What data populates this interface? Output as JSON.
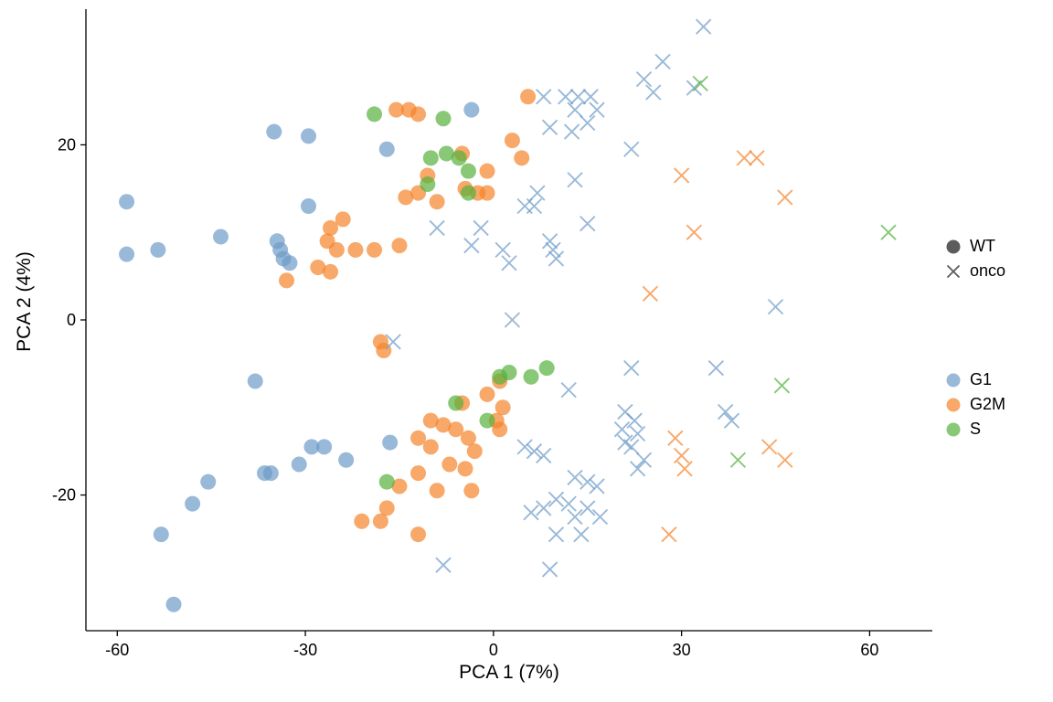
{
  "figure": {
    "background": "#ffffff"
  },
  "axes": {
    "x": {
      "label": "PCA 1 (7%)",
      "ticks": [
        -60,
        -30,
        0,
        30,
        60
      ],
      "range": [
        -65,
        70
      ]
    },
    "y": {
      "label": "PCA 2 (4%)",
      "ticks": [
        -20,
        0,
        20
      ],
      "range": [
        -35.5,
        35.5
      ]
    }
  },
  "legend": {
    "shape": {
      "color": "#404040",
      "items": [
        {
          "label": "WT",
          "marker": "circle"
        },
        {
          "label": "onco",
          "marker": "x"
        }
      ]
    },
    "color": {
      "items": [
        {
          "label": "G1",
          "color": "#6e9bc8"
        },
        {
          "label": "G2M",
          "color": "#f58329"
        },
        {
          "label": "S",
          "color": "#55b13c"
        }
      ]
    }
  },
  "chart_data": {
    "type": "scatter",
    "title": "",
    "xlabel": "PCA 1 (7%)",
    "ylabel": "PCA 2 (4%)",
    "xlim": [
      -65,
      70
    ],
    "ylim": [
      -35.5,
      35.5
    ],
    "legend_position": "right",
    "marker_opacity": 0.7,
    "series": [
      {
        "name": "WT / G1",
        "genotype": "WT",
        "phase": "G1",
        "marker": "circle",
        "color": "#6e9bc8",
        "points": [
          [
            -58.5,
            13.5
          ],
          [
            -58.5,
            7.5
          ],
          [
            -53.5,
            8
          ],
          [
            -43.5,
            9.5
          ],
          [
            -35,
            21.5
          ],
          [
            -29.5,
            21
          ],
          [
            -34.5,
            9
          ],
          [
            -34,
            8
          ],
          [
            -33.5,
            7
          ],
          [
            -32.5,
            6.5
          ],
          [
            -29.5,
            13
          ],
          [
            -17,
            19.5
          ],
          [
            -3.5,
            24
          ],
          [
            -38,
            -7
          ],
          [
            -36.5,
            -17.5
          ],
          [
            -35.5,
            -17.5
          ],
          [
            -31,
            -16.5
          ],
          [
            -29,
            -14.5
          ],
          [
            -27,
            -14.5
          ],
          [
            -23.5,
            -16
          ],
          [
            -16.5,
            -14
          ],
          [
            -45.5,
            -18.5
          ],
          [
            -48,
            -21
          ],
          [
            -53,
            -24.5
          ],
          [
            -51,
            -32.5
          ]
        ]
      },
      {
        "name": "WT / G2M",
        "genotype": "WT",
        "phase": "G2M",
        "marker": "circle",
        "color": "#f58329",
        "points": [
          [
            -15.5,
            24
          ],
          [
            -13.5,
            24
          ],
          [
            -12,
            23.5
          ],
          [
            5.5,
            25.5
          ],
          [
            3,
            20.5
          ],
          [
            4.5,
            18.5
          ],
          [
            -5,
            19
          ],
          [
            -1,
            17
          ],
          [
            -10.5,
            16.5
          ],
          [
            -12,
            14.5
          ],
          [
            -14,
            14
          ],
          [
            -4.5,
            15
          ],
          [
            -2.5,
            14.5
          ],
          [
            -1,
            14.5
          ],
          [
            -9,
            13.5
          ],
          [
            -24,
            11.5
          ],
          [
            -26,
            10.5
          ],
          [
            -26.5,
            9
          ],
          [
            -25,
            8
          ],
          [
            -22,
            8
          ],
          [
            -19,
            8
          ],
          [
            -15,
            8.5
          ],
          [
            -28,
            6
          ],
          [
            -26,
            5.5
          ],
          [
            -33,
            4.5
          ],
          [
            -18,
            -2.5
          ],
          [
            -17.5,
            -3.5
          ],
          [
            1,
            -7
          ],
          [
            -1,
            -8.5
          ],
          [
            -5,
            -9.5
          ],
          [
            1.5,
            -10
          ],
          [
            -10,
            -11.5
          ],
          [
            -8,
            -12
          ],
          [
            -6,
            -12.5
          ],
          [
            0.5,
            -11.5
          ],
          [
            1,
            -12.5
          ],
          [
            -4,
            -13.5
          ],
          [
            -12,
            -13.5
          ],
          [
            -10,
            -14.5
          ],
          [
            -3,
            -15
          ],
          [
            -7,
            -16.5
          ],
          [
            -4.5,
            -17
          ],
          [
            -12,
            -17.5
          ],
          [
            -15,
            -19
          ],
          [
            -9,
            -19.5
          ],
          [
            -3.5,
            -19.5
          ],
          [
            -17,
            -21.5
          ],
          [
            -21,
            -23
          ],
          [
            -18,
            -23
          ],
          [
            -12,
            -24.5
          ]
        ]
      },
      {
        "name": "WT / S",
        "genotype": "WT",
        "phase": "S",
        "marker": "circle",
        "color": "#55b13c",
        "points": [
          [
            -19,
            23.5
          ],
          [
            -8,
            23
          ],
          [
            -10,
            18.5
          ],
          [
            -7.5,
            19
          ],
          [
            -5.5,
            18.5
          ],
          [
            -4,
            17
          ],
          [
            -10.5,
            15.5
          ],
          [
            -4,
            14.5
          ],
          [
            1,
            -6.5
          ],
          [
            2.5,
            -6
          ],
          [
            6,
            -6.5
          ],
          [
            8.5,
            -5.5
          ],
          [
            -6,
            -9.5
          ],
          [
            -1,
            -11.5
          ],
          [
            -17,
            -18.5
          ]
        ]
      },
      {
        "name": "onco / G1",
        "genotype": "onco",
        "phase": "G1",
        "marker": "x",
        "color": "#6e9bc8",
        "points": [
          [
            33.5,
            33.5
          ],
          [
            27,
            29.5
          ],
          [
            24,
            27.5
          ],
          [
            25.5,
            26
          ],
          [
            32,
            26.5
          ],
          [
            8,
            25.5
          ],
          [
            11.5,
            25.5
          ],
          [
            13.5,
            25.5
          ],
          [
            15.5,
            25.5
          ],
          [
            13,
            24
          ],
          [
            16.5,
            24
          ],
          [
            9,
            22
          ],
          [
            12.5,
            21.5
          ],
          [
            15,
            22.5
          ],
          [
            22,
            19.5
          ],
          [
            13,
            16
          ],
          [
            7,
            14.5
          ],
          [
            5,
            13
          ],
          [
            6.5,
            13
          ],
          [
            15,
            11
          ],
          [
            -9,
            10.5
          ],
          [
            -2,
            10.5
          ],
          [
            -3.5,
            8.5
          ],
          [
            1.5,
            8
          ],
          [
            2.5,
            6.5
          ],
          [
            9,
            9
          ],
          [
            9.5,
            8
          ],
          [
            10,
            7
          ],
          [
            3,
            0
          ],
          [
            45,
            1.5
          ],
          [
            -16,
            -2.5
          ],
          [
            22,
            -5.5
          ],
          [
            35.5,
            -5.5
          ],
          [
            12,
            -8
          ],
          [
            21,
            -10.5
          ],
          [
            22.5,
            -11.5
          ],
          [
            20.5,
            -12.5
          ],
          [
            23,
            -13
          ],
          [
            21,
            -14
          ],
          [
            22,
            -14.5
          ],
          [
            24,
            -16
          ],
          [
            23,
            -17
          ],
          [
            37,
            -10.5
          ],
          [
            38,
            -11.5
          ],
          [
            5,
            -14.5
          ],
          [
            6.5,
            -15
          ],
          [
            8,
            -15.5
          ],
          [
            13,
            -18
          ],
          [
            15,
            -18.5
          ],
          [
            16.5,
            -19
          ],
          [
            10,
            -20.5
          ],
          [
            12,
            -21
          ],
          [
            8,
            -21.5
          ],
          [
            6,
            -22
          ],
          [
            13,
            -22.5
          ],
          [
            15,
            -21.5
          ],
          [
            17,
            -22.5
          ],
          [
            14,
            -24.5
          ],
          [
            10,
            -24.5
          ],
          [
            -8,
            -28
          ],
          [
            9,
            -28.5
          ]
        ]
      },
      {
        "name": "onco / G2M",
        "genotype": "onco",
        "phase": "G2M",
        "marker": "x",
        "color": "#f58329",
        "points": [
          [
            30,
            16.5
          ],
          [
            40,
            18.5
          ],
          [
            42,
            18.5
          ],
          [
            46.5,
            14
          ],
          [
            32,
            10
          ],
          [
            25,
            3
          ],
          [
            29,
            -13.5
          ],
          [
            30,
            -15.5
          ],
          [
            30.5,
            -17
          ],
          [
            44,
            -14.5
          ],
          [
            46.5,
            -16
          ],
          [
            28,
            -24.5
          ]
        ]
      },
      {
        "name": "onco / S",
        "genotype": "onco",
        "phase": "S",
        "marker": "x",
        "color": "#55b13c",
        "points": [
          [
            33,
            27
          ],
          [
            63,
            10
          ],
          [
            46,
            -7.5
          ],
          [
            39,
            -16
          ]
        ]
      }
    ]
  }
}
